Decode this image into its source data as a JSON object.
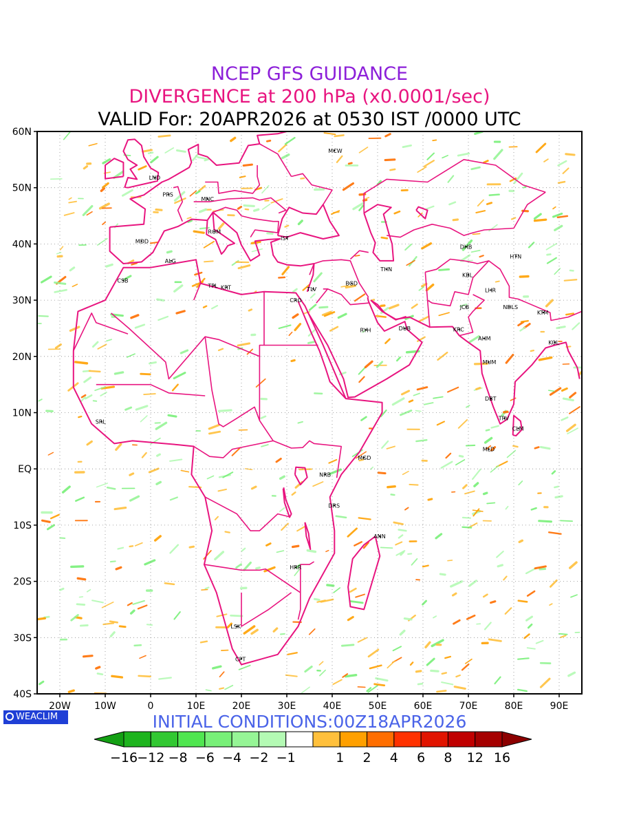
{
  "title": {
    "line1": "NCEP GFS GUIDANCE",
    "line2": "DIVERGENCE at 200 hPa (x0.0001/sec)",
    "line3": "VALID For: 20APR2026 at 0530 IST /0000 UTC"
  },
  "initial_conditions": "INITIAL CONDITIONS:00Z18APR2026",
  "logo": "WEACLIM",
  "map": {
    "projection": "lat-lon",
    "lon_range": [
      -25,
      95
    ],
    "lat_range": [
      -40,
      60
    ],
    "lat_labels": [
      "60N",
      "50N",
      "40N",
      "30N",
      "20N",
      "10N",
      "EQ",
      "10S",
      "20S",
      "30S",
      "40S"
    ],
    "lon_labels": [
      "20W",
      "10W",
      "0",
      "10E",
      "20E",
      "30E",
      "40E",
      "50E",
      "60E",
      "70E",
      "80E",
      "90E"
    ],
    "boundary_color": "#e8147f",
    "grid": "dotted",
    "cities": [
      {
        "code": "MCW",
        "lon": 40.5,
        "lat": 56.6
      },
      {
        "code": "LND",
        "lon": 1.0,
        "lat": 51.8
      },
      {
        "code": "PRS",
        "lon": 4.0,
        "lat": 48.8
      },
      {
        "code": "MNC",
        "lon": 12.5,
        "lat": 48.0
      },
      {
        "code": "ROM",
        "lon": 14.0,
        "lat": 42.2
      },
      {
        "code": "IST",
        "lon": 30.0,
        "lat": 41.0
      },
      {
        "code": "MDD",
        "lon": -2.0,
        "lat": 40.5
      },
      {
        "code": "ALG",
        "lon": 4.5,
        "lat": 37.0
      },
      {
        "code": "CSB",
        "lon": -6.0,
        "lat": 33.5
      },
      {
        "code": "TPL",
        "lon": 14.0,
        "lat": 32.6
      },
      {
        "code": "KRT",
        "lon": 16.8,
        "lat": 32.3
      },
      {
        "code": "TLV",
        "lon": 35.8,
        "lat": 32.0
      },
      {
        "code": "CRO",
        "lon": 32.0,
        "lat": 30.0
      },
      {
        "code": "BGD",
        "lon": 44.3,
        "lat": 33.0
      },
      {
        "code": "THN",
        "lon": 52.0,
        "lat": 35.5
      },
      {
        "code": "RYH",
        "lon": 47.5,
        "lat": 24.7
      },
      {
        "code": "DUB",
        "lon": 56.0,
        "lat": 25.0
      },
      {
        "code": "DHB",
        "lon": 69.5,
        "lat": 39.5
      },
      {
        "code": "KBL",
        "lon": 70.0,
        "lat": 34.5
      },
      {
        "code": "HTN",
        "lon": 80.5,
        "lat": 37.8
      },
      {
        "code": "LHR",
        "lon": 75.0,
        "lat": 31.8
      },
      {
        "code": "NDLS",
        "lon": 79.0,
        "lat": 28.8
      },
      {
        "code": "JCB",
        "lon": 69.5,
        "lat": 28.8
      },
      {
        "code": "KTM",
        "lon": 86.5,
        "lat": 27.8
      },
      {
        "code": "KRC",
        "lon": 68.0,
        "lat": 24.8
      },
      {
        "code": "AHM",
        "lon": 73.5,
        "lat": 23.2
      },
      {
        "code": "KOL",
        "lon": 89.0,
        "lat": 22.5
      },
      {
        "code": "MUM",
        "lon": 74.5,
        "lat": 19.0
      },
      {
        "code": "DBT",
        "lon": 75.0,
        "lat": 12.5
      },
      {
        "code": "TRV",
        "lon": 78.0,
        "lat": 9.0
      },
      {
        "code": "CLM",
        "lon": 81.0,
        "lat": 7.2
      },
      {
        "code": "SRL",
        "lon": -10.8,
        "lat": 8.4
      },
      {
        "code": "MLD",
        "lon": 74.5,
        "lat": 3.5
      },
      {
        "code": "MGD",
        "lon": 47.0,
        "lat": 2.0
      },
      {
        "code": "NRB",
        "lon": 38.5,
        "lat": -1.0
      },
      {
        "code": "DRS",
        "lon": 40.5,
        "lat": -6.5
      },
      {
        "code": "ANN",
        "lon": 50.5,
        "lat": -12.0
      },
      {
        "code": "HRR",
        "lon": 32.0,
        "lat": -17.5
      },
      {
        "code": "LSK",
        "lon": 19.0,
        "lat": -28.0
      },
      {
        "code": "CPT",
        "lon": 20.0,
        "lat": -33.8
      }
    ]
  },
  "colorbar": {
    "labels": [
      "−16",
      "−12",
      "−8",
      "−6",
      "−4",
      "−2",
      "−1",
      "1",
      "2",
      "4",
      "6",
      "8",
      "12",
      "16"
    ],
    "colors": [
      "#1eb41e",
      "#32c832",
      "#50e650",
      "#78f078",
      "#96f596",
      "#b4fab4",
      "#ffffff",
      "#ffc03c",
      "#ffa000",
      "#ff6e00",
      "#ff3200",
      "#e11400",
      "#c00000",
      "#a50000"
    ],
    "low_end_color": "#14a014",
    "high_end_color": "#8c0000"
  }
}
